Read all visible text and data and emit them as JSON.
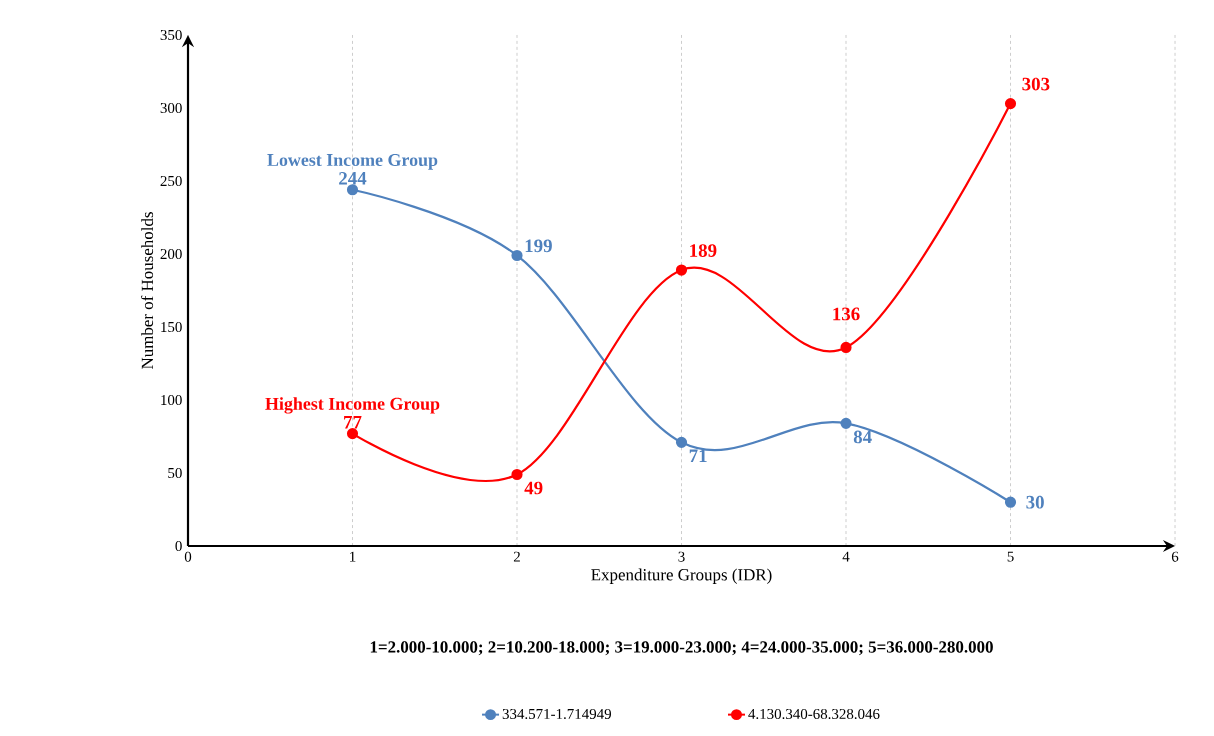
{
  "chart_data": {
    "type": "line",
    "xlabel": "Expenditure Groups (IDR)",
    "ylabel": "Number of Households",
    "x": [
      1,
      2,
      3,
      4,
      5
    ],
    "series": [
      {
        "name": "334.571-1.714949",
        "color": "#4f81bd",
        "values": [
          244,
          199,
          71,
          84,
          30
        ]
      },
      {
        "name": "4.130.340-68.328.046",
        "color": "#ff0000",
        "values": [
          77,
          49,
          189,
          136,
          303
        ]
      }
    ],
    "xlim": [
      0,
      6
    ],
    "xticks": [
      0,
      1,
      2,
      3,
      4,
      5,
      6
    ],
    "ylim": [
      0,
      350
    ],
    "yticks": [
      0,
      50,
      100,
      150,
      200,
      250,
      300,
      350
    ],
    "grid": "x",
    "legend": "bottom",
    "marker": "circle",
    "line_style": "solid",
    "data_labels": true,
    "annotations": [
      {
        "text": "Lowest Income Group",
        "x": 1,
        "y": 244
      },
      {
        "text": "Highest Income Group",
        "x": 1,
        "y": 77
      },
      "1=2.000-10.000; 2=10.200-18.000; 3=19.000-23.000; 4=24.000-35.000; 5=36.000-280.000"
    ]
  }
}
